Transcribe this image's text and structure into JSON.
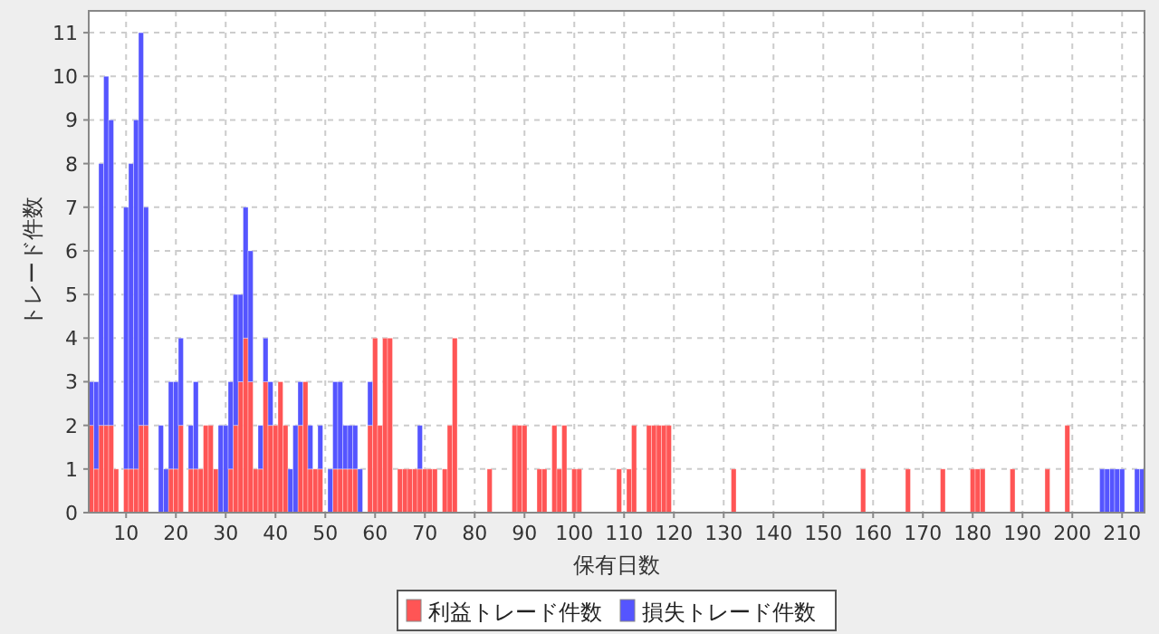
{
  "chart_data": {
    "type": "bar",
    "stacked": true,
    "xlabel": "保有日数",
    "ylabel": "トレード件数",
    "x": [
      3,
      4,
      5,
      6,
      7,
      8,
      10,
      11,
      12,
      13,
      14,
      17,
      18,
      19,
      20,
      21,
      23,
      24,
      25,
      26,
      27,
      28,
      29,
      30,
      31,
      32,
      33,
      34,
      35,
      36,
      37,
      38,
      39,
      40,
      41,
      42,
      43,
      44,
      45,
      46,
      47,
      48,
      49,
      51,
      52,
      53,
      54,
      55,
      56,
      57,
      59,
      60,
      61,
      62,
      63,
      65,
      66,
      67,
      68,
      69,
      70,
      71,
      72,
      74,
      75,
      76,
      83,
      88,
      89,
      90,
      93,
      94,
      96,
      97,
      98,
      100,
      101,
      109,
      111,
      112,
      115,
      116,
      117,
      118,
      119,
      132,
      158,
      167,
      174,
      180,
      181,
      182,
      188,
      195,
      199,
      206,
      207,
      208,
      209,
      210,
      213,
      214
    ],
    "series": [
      {
        "name": "利益トレード件数",
        "color": "#ff5555",
        "values": [
          2,
          1,
          2,
          2,
          2,
          1,
          1,
          1,
          1,
          2,
          2,
          null,
          null,
          1,
          1,
          2,
          1,
          1,
          1,
          2,
          2,
          1,
          null,
          null,
          1,
          2,
          3,
          4,
          3,
          1,
          1,
          3,
          2,
          2,
          3,
          2,
          null,
          null,
          2,
          3,
          1,
          1,
          1,
          null,
          1,
          1,
          1,
          1,
          1,
          null,
          2,
          4,
          2,
          4,
          4,
          1,
          1,
          1,
          1,
          1,
          1,
          1,
          1,
          1,
          2,
          4,
          1,
          2,
          2,
          2,
          1,
          1,
          2,
          1,
          2,
          1,
          1,
          1,
          1,
          2,
          2,
          2,
          2,
          2,
          2,
          1,
          1,
          1,
          1,
          1,
          1,
          1,
          1,
          1,
          2,
          null,
          null,
          null,
          null,
          null,
          null,
          null
        ]
      },
      {
        "name": "損失トレード件数",
        "color": "#5555ff",
        "values": [
          1,
          2,
          6,
          8,
          7,
          null,
          6,
          7,
          8,
          9,
          5,
          2,
          1,
          2,
          2,
          2,
          1,
          2,
          null,
          null,
          null,
          null,
          2,
          2,
          2,
          3,
          2,
          3,
          3,
          null,
          1,
          1,
          1,
          null,
          null,
          null,
          1,
          2,
          1,
          null,
          1,
          null,
          1,
          1,
          2,
          2,
          1,
          1,
          1,
          1,
          1,
          null,
          null,
          null,
          null,
          null,
          null,
          null,
          null,
          1,
          null,
          null,
          null,
          null,
          null,
          null,
          null,
          null,
          null,
          null,
          null,
          null,
          null,
          null,
          null,
          null,
          null,
          null,
          null,
          null,
          null,
          null,
          null,
          null,
          null,
          null,
          null,
          null,
          null,
          null,
          null,
          null,
          null,
          null,
          null,
          1,
          1,
          1,
          1,
          1,
          1,
          1
        ]
      }
    ],
    "xlim": [
      2.5,
      214.5
    ],
    "ylim": [
      0,
      11.5
    ],
    "xticks": [
      10,
      20,
      30,
      40,
      50,
      60,
      70,
      80,
      90,
      100,
      110,
      120,
      130,
      140,
      150,
      160,
      170,
      180,
      190,
      200,
      210
    ],
    "yticks": [
      0,
      1,
      2,
      3,
      4,
      5,
      6,
      7,
      8,
      9,
      10,
      11
    ],
    "grid": true,
    "legend": "bottom"
  }
}
